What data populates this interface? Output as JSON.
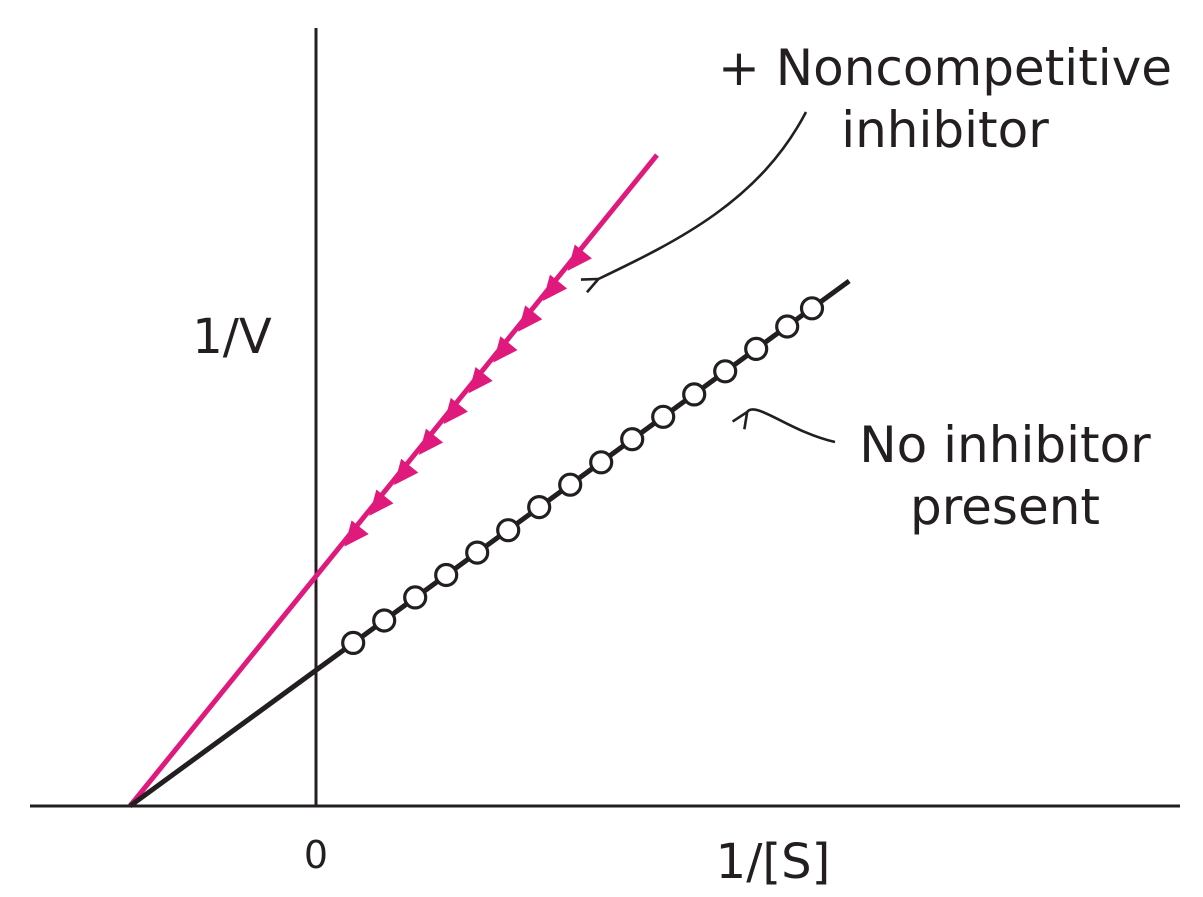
{
  "chart_data": {
    "type": "line",
    "title": "",
    "xlabel": "1/[S]",
    "ylabel": "1/V",
    "x_ticks": [
      {
        "value": 0,
        "label": "0"
      }
    ],
    "xlim": [
      -0.32,
      1.37
    ],
    "ylim": [
      0,
      1.0
    ],
    "grid": false,
    "legend": "none",
    "series": [
      {
        "key": "inhibited",
        "color": "#e0197d",
        "marker": "triangle-down",
        "line": {
          "x0": -0.3,
          "y0": 0.0,
          "x1": 0.55,
          "y1": 0.93
        },
        "x": [
          0.06,
          0.1,
          0.14,
          0.18,
          0.22,
          0.26,
          0.3,
          0.34,
          0.38,
          0.42
        ],
        "y": [
          0.386,
          0.43,
          0.474,
          0.517,
          0.561,
          0.605,
          0.649,
          0.693,
          0.737,
          0.78
        ]
      },
      {
        "key": "uninhibited",
        "color": "#231f20",
        "marker": "open-circle",
        "line": {
          "x0": -0.3,
          "y0": 0.0,
          "x1": 0.86,
          "y1": 0.75
        },
        "x": [
          0.06,
          0.11,
          0.16,
          0.21,
          0.26,
          0.31,
          0.36,
          0.41,
          0.46,
          0.51,
          0.56,
          0.61,
          0.66,
          0.71,
          0.76,
          0.8
        ],
        "y": [
          0.233,
          0.265,
          0.298,
          0.33,
          0.362,
          0.394,
          0.427,
          0.459,
          0.491,
          0.524,
          0.556,
          0.588,
          0.621,
          0.653,
          0.685,
          0.711
        ]
      }
    ],
    "annotations": [
      {
        "key": "inhibited",
        "lines": [
          "+ Noncompetitive",
          "inhibitor"
        ],
        "target": {
          "x": 0.42,
          "y": 0.75
        }
      },
      {
        "key": "uninhibited",
        "lines": [
          "No inhibitor",
          "present"
        ],
        "target": {
          "x": 0.66,
          "y": 0.56
        }
      }
    ]
  }
}
